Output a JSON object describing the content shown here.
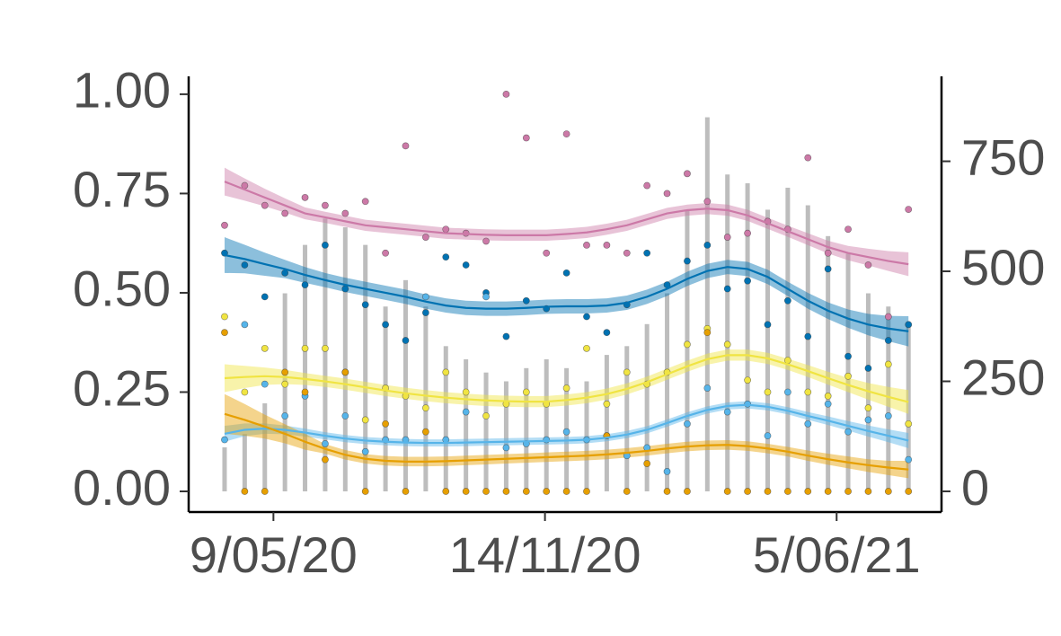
{
  "chart_data": {
    "type": "combo",
    "x": [
      "2020-04-05",
      "2020-04-19",
      "2020-05-03",
      "2020-05-17",
      "2020-05-31",
      "2020-06-14",
      "2020-06-28",
      "2020-07-12",
      "2020-07-26",
      "2020-08-09",
      "2020-08-23",
      "2020-09-06",
      "2020-09-20",
      "2020-10-04",
      "2020-10-18",
      "2020-11-01",
      "2020-11-15",
      "2020-11-29",
      "2020-12-13",
      "2020-12-27",
      "2021-01-10",
      "2021-01-24",
      "2021-02-07",
      "2021-02-21",
      "2021-03-07",
      "2021-03-21",
      "2021-04-04",
      "2021-04-18",
      "2021-05-02",
      "2021-05-16",
      "2021-05-30",
      "2021-06-13",
      "2021-06-27",
      "2021-07-11",
      "2021-07-25"
    ],
    "xlim": [
      "2020-03-11",
      "2021-08-17"
    ],
    "xticks": [
      {
        "value": "2020-05-09",
        "label": "9/05/20"
      },
      {
        "value": "2020-11-14",
        "label": "14/11/20"
      },
      {
        "value": "2021-06-05",
        "label": "5/06/21"
      }
    ],
    "ylim": [
      -0.052,
      1.045
    ],
    "yticks": [
      {
        "value": 0,
        "label": "0.00"
      },
      {
        "value": 0.25,
        "label": "0.25"
      },
      {
        "value": 0.5,
        "label": "0.50"
      },
      {
        "value": 0.75,
        "label": "0.75"
      },
      {
        "value": 1,
        "label": "1.00"
      }
    ],
    "y2lim": [
      -47,
      943
    ],
    "y2ticks": [
      0,
      250,
      500,
      750
    ],
    "series": [
      {
        "type": "bar",
        "axis": "y2",
        "color": "#bdbdbd",
        "values": [
          100,
          130,
          200,
          450,
          560,
          620,
          600,
          560,
          420,
          480,
          420,
          330,
          300,
          270,
          250,
          280,
          300,
          280,
          250,
          310,
          330,
          380,
          450,
          640,
          850,
          720,
          700,
          640,
          690,
          650,
          580,
          540,
          450,
          420,
          380
        ]
      },
      {
        "type": "scatter",
        "color": "#cc79a7",
        "values": [
          0.67,
          0.77,
          0.72,
          0.7,
          0.74,
          0.72,
          0.7,
          0.73,
          0.6,
          0.87,
          0.64,
          0.66,
          0.65,
          0.63,
          1.0,
          0.89,
          0.6,
          0.9,
          0.62,
          0.62,
          0.6,
          0.77,
          0.75,
          0.8,
          0.73,
          0.64,
          0.65,
          0.68,
          0.66,
          0.84,
          0.6,
          0.66,
          0.57,
          0.44,
          0.71
        ]
      },
      {
        "type": "scatter",
        "color": "#0072b2",
        "values": [
          0.6,
          0.57,
          0.49,
          0.55,
          0.52,
          0.62,
          0.51,
          0.47,
          0.42,
          0.38,
          0.45,
          0.59,
          0.57,
          0.5,
          0.39,
          0.48,
          0.46,
          0.55,
          0.44,
          0.4,
          0.47,
          0.6,
          0.52,
          0.58,
          0.62,
          0.51,
          0.53,
          0.42,
          0.48,
          0.39,
          0.56,
          0.34,
          0.31,
          0.38,
          0.42
        ]
      },
      {
        "type": "scatter",
        "color": "#f0e442",
        "values": [
          0.44,
          0.25,
          0.36,
          0.27,
          0.36,
          0.36,
          0.3,
          0.18,
          0.26,
          0.24,
          0.21,
          0.3,
          0.25,
          0.19,
          0.22,
          0.25,
          0.22,
          0.26,
          0.36,
          0.22,
          0.3,
          0.27,
          0.3,
          0.37,
          0.41,
          0.37,
          0.28,
          0.25,
          0.33,
          0.25,
          0.24,
          0.29,
          0.21,
          0.32,
          0.17
        ]
      },
      {
        "type": "scatter",
        "color": "#56b4e9",
        "values": [
          0.13,
          0.42,
          0.27,
          0.19,
          0.24,
          0.12,
          0.19,
          0.1,
          0.13,
          0.13,
          0.49,
          0.13,
          0.2,
          0.49,
          0.11,
          0.12,
          0.13,
          0.15,
          0.13,
          0.14,
          0.09,
          0.11,
          0.05,
          0.17,
          0.26,
          0.2,
          0.22,
          0.14,
          0.25,
          0.17,
          0.22,
          0.15,
          0.18,
          0.19,
          0.08
        ]
      },
      {
        "type": "scatter",
        "color": "#e69f00",
        "values": [
          0.4,
          0,
          0,
          0.3,
          0.25,
          0.08,
          0.3,
          0,
          0.17,
          0,
          0.15,
          0,
          0,
          0,
          0,
          0,
          0,
          0,
          0,
          0.14,
          0,
          0.07,
          0,
          0,
          0.4,
          0,
          0,
          0,
          0,
          0,
          0,
          0,
          0,
          0,
          0
        ]
      },
      {
        "type": "line",
        "color": "#cc79a7",
        "values": [
          0.78,
          0.76,
          0.74,
          0.72,
          0.7,
          0.69,
          0.68,
          0.67,
          0.665,
          0.66,
          0.655,
          0.65,
          0.648,
          0.646,
          0.645,
          0.645,
          0.645,
          0.648,
          0.652,
          0.66,
          0.67,
          0.685,
          0.7,
          0.708,
          0.712,
          0.708,
          0.695,
          0.675,
          0.655,
          0.635,
          0.615,
          0.6,
          0.59,
          0.58,
          0.572
        ],
        "lower": [
          0.745,
          0.732,
          0.718,
          0.702,
          0.685,
          0.676,
          0.666,
          0.656,
          0.651,
          0.646,
          0.641,
          0.636,
          0.634,
          0.632,
          0.631,
          0.631,
          0.631,
          0.634,
          0.638,
          0.646,
          0.656,
          0.671,
          0.686,
          0.694,
          0.698,
          0.694,
          0.681,
          0.661,
          0.641,
          0.62,
          0.599,
          0.582,
          0.569,
          0.555,
          0.542
        ],
        "upper": [
          0.815,
          0.788,
          0.762,
          0.738,
          0.715,
          0.704,
          0.694,
          0.684,
          0.679,
          0.674,
          0.669,
          0.664,
          0.662,
          0.66,
          0.659,
          0.659,
          0.659,
          0.662,
          0.666,
          0.674,
          0.684,
          0.699,
          0.714,
          0.722,
          0.726,
          0.722,
          0.709,
          0.689,
          0.669,
          0.65,
          0.631,
          0.618,
          0.611,
          0.605,
          0.602
        ]
      },
      {
        "type": "line",
        "color": "#0072b2",
        "values": [
          0.595,
          0.585,
          0.572,
          0.56,
          0.545,
          0.532,
          0.52,
          0.51,
          0.5,
          0.49,
          0.478,
          0.468,
          0.462,
          0.46,
          0.46,
          0.462,
          0.465,
          0.466,
          0.466,
          0.468,
          0.475,
          0.49,
          0.51,
          0.535,
          0.555,
          0.565,
          0.56,
          0.54,
          0.51,
          0.48,
          0.455,
          0.435,
          0.42,
          0.41,
          0.403
        ],
        "lower": [
          0.55,
          0.549,
          0.543,
          0.537,
          0.525,
          0.514,
          0.502,
          0.492,
          0.482,
          0.472,
          0.46,
          0.45,
          0.444,
          0.442,
          0.442,
          0.444,
          0.447,
          0.448,
          0.448,
          0.45,
          0.457,
          0.472,
          0.492,
          0.517,
          0.537,
          0.547,
          0.542,
          0.522,
          0.492,
          0.46,
          0.434,
          0.412,
          0.393,
          0.378,
          0.365
        ],
        "upper": [
          0.64,
          0.621,
          0.601,
          0.583,
          0.565,
          0.55,
          0.538,
          0.528,
          0.518,
          0.508,
          0.496,
          0.486,
          0.48,
          0.478,
          0.478,
          0.48,
          0.483,
          0.484,
          0.484,
          0.486,
          0.493,
          0.508,
          0.528,
          0.553,
          0.573,
          0.583,
          0.578,
          0.558,
          0.528,
          0.5,
          0.476,
          0.458,
          0.447,
          0.442,
          0.441
        ]
      },
      {
        "type": "line",
        "color": "#f0e442",
        "values": [
          0.285,
          0.288,
          0.29,
          0.288,
          0.283,
          0.277,
          0.27,
          0.262,
          0.254,
          0.247,
          0.241,
          0.236,
          0.232,
          0.229,
          0.227,
          0.226,
          0.226,
          0.23,
          0.236,
          0.245,
          0.258,
          0.275,
          0.295,
          0.315,
          0.333,
          0.343,
          0.343,
          0.335,
          0.32,
          0.303,
          0.285,
          0.268,
          0.252,
          0.238,
          0.225
        ],
        "lower": [
          0.25,
          0.26,
          0.268,
          0.27,
          0.268,
          0.263,
          0.256,
          0.248,
          0.24,
          0.233,
          0.227,
          0.222,
          0.218,
          0.215,
          0.213,
          0.212,
          0.212,
          0.216,
          0.222,
          0.231,
          0.244,
          0.261,
          0.281,
          0.301,
          0.319,
          0.329,
          0.329,
          0.321,
          0.306,
          0.288,
          0.269,
          0.25,
          0.231,
          0.213,
          0.195
        ],
        "upper": [
          0.32,
          0.316,
          0.312,
          0.306,
          0.298,
          0.291,
          0.284,
          0.276,
          0.268,
          0.261,
          0.255,
          0.25,
          0.246,
          0.243,
          0.241,
          0.24,
          0.24,
          0.244,
          0.25,
          0.259,
          0.272,
          0.289,
          0.309,
          0.329,
          0.347,
          0.357,
          0.357,
          0.349,
          0.334,
          0.318,
          0.301,
          0.286,
          0.273,
          0.263,
          0.255
        ]
      },
      {
        "type": "line",
        "color": "#56b4e9",
        "values": [
          0.145,
          0.155,
          0.158,
          0.155,
          0.148,
          0.14,
          0.133,
          0.128,
          0.125,
          0.123,
          0.122,
          0.122,
          0.123,
          0.124,
          0.125,
          0.126,
          0.127,
          0.128,
          0.13,
          0.135,
          0.143,
          0.155,
          0.172,
          0.19,
          0.205,
          0.215,
          0.218,
          0.213,
          0.203,
          0.19,
          0.178,
          0.165,
          0.152,
          0.14,
          0.128
        ],
        "lower": [
          0.125,
          0.139,
          0.145,
          0.144,
          0.138,
          0.131,
          0.124,
          0.119,
          0.116,
          0.114,
          0.113,
          0.113,
          0.114,
          0.115,
          0.116,
          0.117,
          0.118,
          0.119,
          0.121,
          0.126,
          0.134,
          0.146,
          0.163,
          0.181,
          0.196,
          0.206,
          0.209,
          0.204,
          0.194,
          0.18,
          0.167,
          0.153,
          0.138,
          0.124,
          0.109
        ],
        "upper": [
          0.165,
          0.171,
          0.171,
          0.166,
          0.158,
          0.149,
          0.142,
          0.137,
          0.134,
          0.132,
          0.131,
          0.131,
          0.132,
          0.133,
          0.134,
          0.135,
          0.136,
          0.137,
          0.139,
          0.144,
          0.152,
          0.164,
          0.181,
          0.199,
          0.214,
          0.224,
          0.227,
          0.222,
          0.212,
          0.2,
          0.189,
          0.177,
          0.166,
          0.156,
          0.147
        ]
      },
      {
        "type": "line",
        "color": "#e69f00",
        "values": [
          0.195,
          0.18,
          0.163,
          0.145,
          0.125,
          0.107,
          0.092,
          0.082,
          0.077,
          0.075,
          0.075,
          0.076,
          0.078,
          0.08,
          0.082,
          0.084,
          0.086,
          0.088,
          0.09,
          0.093,
          0.097,
          0.102,
          0.108,
          0.113,
          0.116,
          0.117,
          0.114,
          0.108,
          0.1,
          0.09,
          0.081,
          0.073,
          0.066,
          0.06,
          0.055
        ],
        "lower": [
          0.145,
          0.14,
          0.133,
          0.121,
          0.105,
          0.095,
          0.08,
          0.07,
          0.065,
          0.063,
          0.063,
          0.064,
          0.066,
          0.068,
          0.07,
          0.072,
          0.074,
          0.076,
          0.078,
          0.081,
          0.085,
          0.09,
          0.096,
          0.101,
          0.104,
          0.105,
          0.102,
          0.096,
          0.088,
          0.077,
          0.067,
          0.058,
          0.049,
          0.041,
          0.033
        ],
        "upper": [
          0.245,
          0.22,
          0.193,
          0.169,
          0.145,
          0.119,
          0.104,
          0.094,
          0.089,
          0.087,
          0.087,
          0.088,
          0.09,
          0.092,
          0.094,
          0.096,
          0.098,
          0.1,
          0.102,
          0.105,
          0.109,
          0.114,
          0.12,
          0.125,
          0.128,
          0.129,
          0.126,
          0.12,
          0.112,
          0.103,
          0.095,
          0.088,
          0.081,
          0.077,
          0.077
        ]
      }
    ]
  }
}
